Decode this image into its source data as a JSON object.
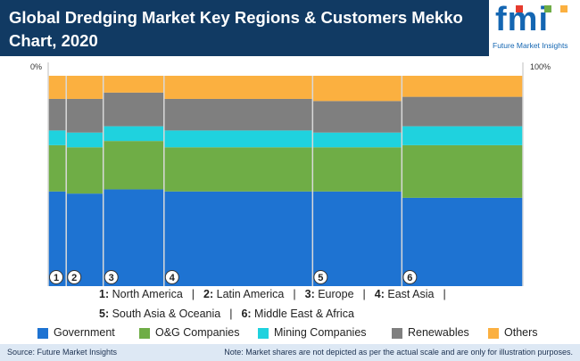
{
  "title": "Global Dredging Market Key Regions & Customers Mekko Chart, 2020",
  "logo": {
    "text": "fmi",
    "tagline": "Future Market Insights"
  },
  "axis": {
    "left_label": "0%",
    "right_label": "100%"
  },
  "regions_legend": {
    "line1": [
      {
        "num": "1:",
        "name": "North America"
      },
      {
        "num": "2:",
        "name": "Latin America"
      },
      {
        "num": "3:",
        "name": "Europe"
      },
      {
        "num": "4:",
        "name": "East Asia"
      }
    ],
    "line2": [
      {
        "num": "5:",
        "name": "South Asia & Oceania"
      },
      {
        "num": "6:",
        "name": "Middle East & Africa"
      }
    ],
    "separator": "|"
  },
  "footer": {
    "source": "Source: Future Market Insights",
    "note": "Note: Market shares are not depicted as per the actual scale and are only for illustration purposes."
  },
  "colors": {
    "Government": "#1e73d2",
    "O&G Companies": "#6fad46",
    "Mining Companies": "#1fd2de",
    "Renewables": "#7f7f7f",
    "Others": "#fbb040"
  },
  "chart_data": {
    "type": "mekko",
    "x_axis": {
      "min_label": "0%",
      "max_label": "100%"
    },
    "columns": [
      {
        "label": "1",
        "width_pct": 3.8
      },
      {
        "label": "2",
        "width_pct": 7.8
      },
      {
        "label": "3",
        "width_pct": 12.8
      },
      {
        "label": "4",
        "width_pct": 31.3
      },
      {
        "label": "5",
        "width_pct": 18.8
      },
      {
        "label": "6",
        "width_pct": 25.5
      }
    ],
    "series": [
      {
        "name": "Government",
        "values": [
          45,
          44,
          46,
          45,
          45,
          42
        ]
      },
      {
        "name": "O&G Companies",
        "values": [
          22,
          22,
          23,
          21,
          21,
          25
        ]
      },
      {
        "name": "Mining Companies",
        "values": [
          7,
          7,
          7,
          8,
          7,
          9
        ]
      },
      {
        "name": "Renewables",
        "values": [
          15,
          16,
          16,
          15,
          15,
          14
        ]
      },
      {
        "name": "Others",
        "values": [
          11,
          11,
          8,
          11,
          12,
          10
        ]
      }
    ]
  }
}
